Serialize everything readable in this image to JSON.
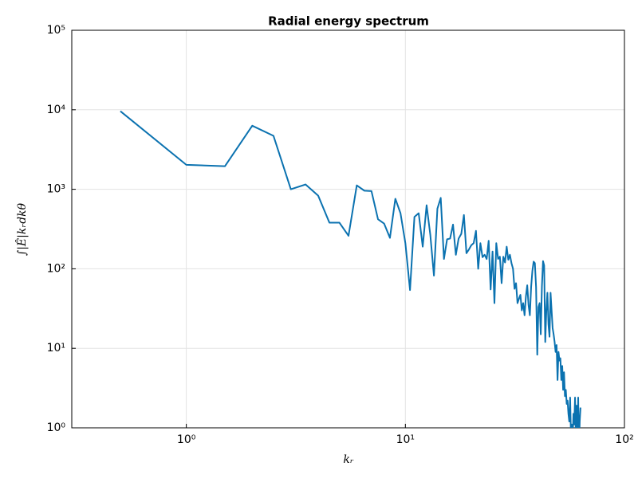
{
  "chart_data": {
    "type": "line",
    "title": "Radial energy spectrum",
    "x_label": "𝑘ᵣ",
    "y_label": "∫|Ê|𝑘ᵣd𝑘θ",
    "log_x": true,
    "log_y": true,
    "grid": true,
    "color": "#0b72b0",
    "xlim": [
      0.3,
      100
    ],
    "ylim": [
      1,
      100000
    ],
    "xticks": [
      {
        "value": 1,
        "label": "10⁰"
      },
      {
        "value": 10,
        "label": "10¹"
      },
      {
        "value": 100,
        "label": "10²"
      }
    ],
    "yticks": [
      {
        "value": 1,
        "label": "10⁰"
      },
      {
        "value": 10,
        "label": "10¹"
      },
      {
        "value": 100,
        "label": "10²"
      },
      {
        "value": 1000,
        "label": "10³"
      },
      {
        "value": 10000,
        "label": "10⁴"
      },
      {
        "value": 100000,
        "label": "10⁵"
      }
    ],
    "x": [
      0.5,
      1,
      1.5,
      2,
      2.5,
      3,
      3.5,
      4,
      4.5,
      5,
      5.5,
      6,
      6.5,
      7,
      7.5,
      8,
      8.5,
      9,
      9.5,
      10,
      10.5,
      11,
      11.5,
      12,
      12.5,
      13,
      13.5,
      14,
      14.5,
      15,
      15.5,
      16,
      16.5,
      17,
      17.5,
      18,
      18.5,
      19,
      19.5,
      20,
      20.5,
      21,
      21.5,
      22,
      22.5,
      23,
      23.5,
      24,
      24.5,
      25,
      25.5,
      26,
      26.5,
      27,
      27.5,
      28,
      28.5,
      29,
      29.5,
      30,
      30.5,
      31,
      31.5,
      32,
      32.5,
      33,
      33.5,
      34,
      34.5,
      35,
      35.5,
      36,
      36.5,
      37,
      37.5,
      38,
      38.5,
      39,
      39.5,
      40,
      40.5,
      41,
      41.5,
      42,
      42.5,
      43,
      43.5,
      44,
      44.5,
      45,
      45.5,
      46,
      46.5,
      47,
      47.5,
      48,
      48.5,
      49,
      49.5,
      50,
      50.5,
      51,
      51.5,
      52,
      52.5,
      53,
      53.5,
      54,
      54.5,
      55,
      55.5,
      56,
      56.5,
      57,
      57.5,
      58,
      58.5,
      59,
      59.5,
      60,
      60.5,
      61,
      61.5,
      62,
      62.5,
      63
    ],
    "values": [
      9600,
      2030,
      1950,
      6300,
      4700,
      1000,
      1150,
      830,
      380,
      380,
      260,
      1120,
      960,
      950,
      420,
      370,
      245,
      760,
      500,
      210,
      54,
      450,
      500,
      190,
      630,
      265,
      82,
      570,
      780,
      133,
      235,
      240,
      360,
      150,
      240,
      275,
      475,
      157,
      175,
      198,
      210,
      300,
      100,
      210,
      140,
      150,
      133,
      225,
      55,
      165,
      37,
      210,
      133,
      142,
      66,
      142,
      120,
      190,
      130,
      150,
      118,
      100,
      56,
      66,
      37,
      42,
      47,
      30,
      37,
      26,
      45,
      62,
      35,
      26,
      59,
      94,
      123,
      118,
      59,
      8.3,
      33,
      37,
      15,
      60,
      125,
      110,
      12,
      30,
      50,
      20,
      14,
      50,
      30,
      18,
      15,
      12,
      9,
      11,
      4,
      9,
      7,
      7.5,
      4,
      6,
      3,
      5,
      2.5,
      3,
      2,
      2.2,
      1.5,
      1.2,
      2.4,
      0.8,
      1.1,
      0.7,
      1.5,
      1.1,
      2.4,
      0.8,
      1.9,
      0.6,
      2.4,
      0.5,
      1.2,
      1.8
    ]
  }
}
